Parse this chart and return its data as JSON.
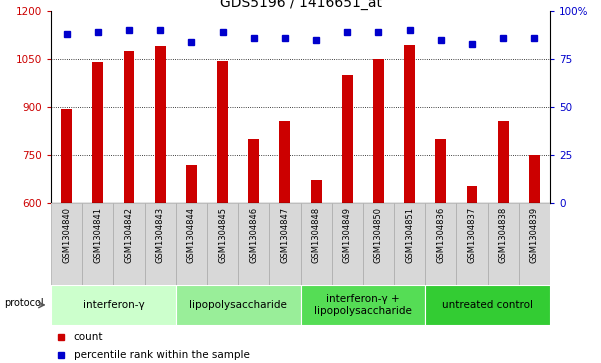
{
  "title": "GDS5196 / 1416651_at",
  "samples": [
    "GSM1304840",
    "GSM1304841",
    "GSM1304842",
    "GSM1304843",
    "GSM1304844",
    "GSM1304845",
    "GSM1304846",
    "GSM1304847",
    "GSM1304848",
    "GSM1304849",
    "GSM1304850",
    "GSM1304851",
    "GSM1304836",
    "GSM1304837",
    "GSM1304838",
    "GSM1304839"
  ],
  "counts": [
    893,
    1042,
    1075,
    1090,
    720,
    1044,
    800,
    858,
    672,
    1000,
    1050,
    1095,
    800,
    655,
    858,
    750
  ],
  "percentiles": [
    88,
    89,
    90,
    90,
    84,
    89,
    86,
    86,
    85,
    89,
    89,
    90,
    85,
    83,
    86,
    86
  ],
  "ylim_left": [
    600,
    1200
  ],
  "ylim_right": [
    0,
    100
  ],
  "yticks_left": [
    600,
    750,
    900,
    1050,
    1200
  ],
  "yticks_right": [
    0,
    25,
    50,
    75,
    100
  ],
  "bar_color": "#cc0000",
  "dot_color": "#0000cc",
  "protocol_groups": [
    {
      "label": "interferon-γ",
      "start": 0,
      "end": 3,
      "color": "#ccffcc"
    },
    {
      "label": "lipopolysaccharide",
      "start": 4,
      "end": 7,
      "color": "#99ee99"
    },
    {
      "label": "interferon-γ +\nlipopolysaccharide",
      "start": 8,
      "end": 11,
      "color": "#55dd55"
    },
    {
      "label": "untreated control",
      "start": 12,
      "end": 15,
      "color": "#33cc33"
    }
  ],
  "legend_count_label": "count",
  "legend_percentile_label": "percentile rank within the sample",
  "title_fontsize": 10,
  "tick_fontsize": 7.5,
  "sample_fontsize": 6,
  "proto_fontsize": 7.5
}
